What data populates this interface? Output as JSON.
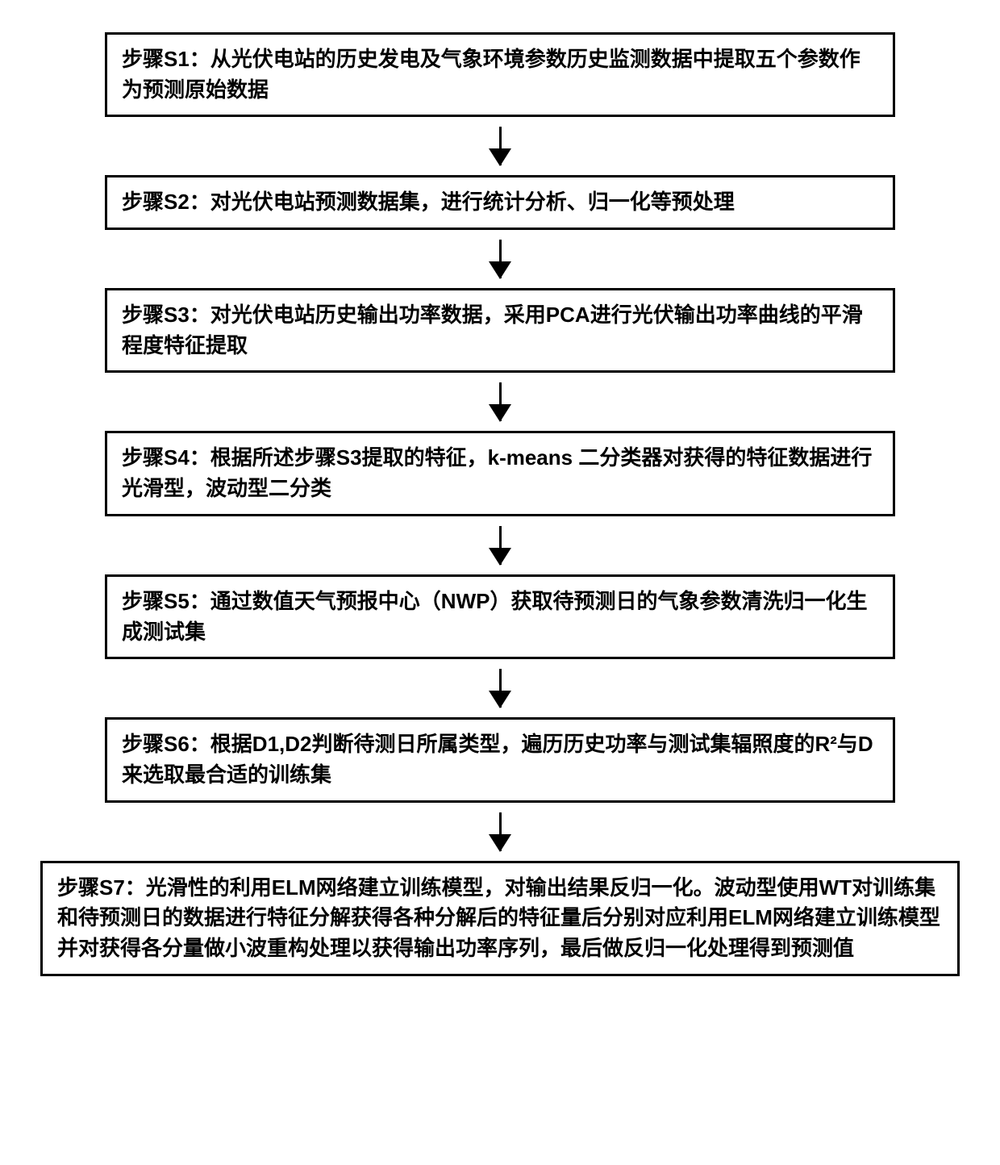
{
  "flowchart": {
    "type": "flowchart",
    "direction": "vertical",
    "background_color": "#ffffff",
    "box_border_color": "#000000",
    "box_border_width": 3,
    "box_background_color": "#ffffff",
    "text_color": "#000000",
    "font_size": 26,
    "font_weight": "bold",
    "arrow_color": "#000000",
    "arrow_line_width": 3,
    "arrowhead_width": 28,
    "arrowhead_height": 22,
    "narrow_box_width": 980,
    "wide_box_width": 1140,
    "arrow_segment_height": 72,
    "steps": [
      {
        "id": "s1",
        "text": "步骤S1：从光伏电站的历史发电及气象环境参数历史监测数据中提取五个参数作为预测原始数据",
        "width_class": "narrow"
      },
      {
        "id": "s2",
        "text": "步骤S2：对光伏电站预测数据集，进行统计分析、归一化等预处理",
        "width_class": "narrow"
      },
      {
        "id": "s3",
        "text": "步骤S3：对光伏电站历史输出功率数据，采用PCA进行光伏输出功率曲线的平滑程度特征提取",
        "width_class": "narrow"
      },
      {
        "id": "s4",
        "text": "步骤S4：根据所述步骤S3提取的特征，k-means 二分类器对获得的特征数据进行光滑型，波动型二分类",
        "width_class": "narrow"
      },
      {
        "id": "s5",
        "text": "步骤S5：通过数值天气预报中心（NWP）获取待预测日的气象参数清洗归一化生成测试集",
        "width_class": "narrow"
      },
      {
        "id": "s6",
        "text": "步骤S6：根据D1,D2判断待测日所属类型，遍历历史功率与测试集辐照度的R²与D来选取最合适的训练集",
        "width_class": "narrow"
      },
      {
        "id": "s7",
        "text": "步骤S7：光滑性的利用ELM网络建立训练模型，对输出结果反归一化。波动型使用WT对训练集和待预测日的数据进行特征分解获得各种分解后的特征量后分别对应利用ELM网络建立训练模型并对获得各分量做小波重构处理以获得输出功率序列，最后做反归一化处理得到预测值",
        "width_class": "wide"
      }
    ]
  }
}
